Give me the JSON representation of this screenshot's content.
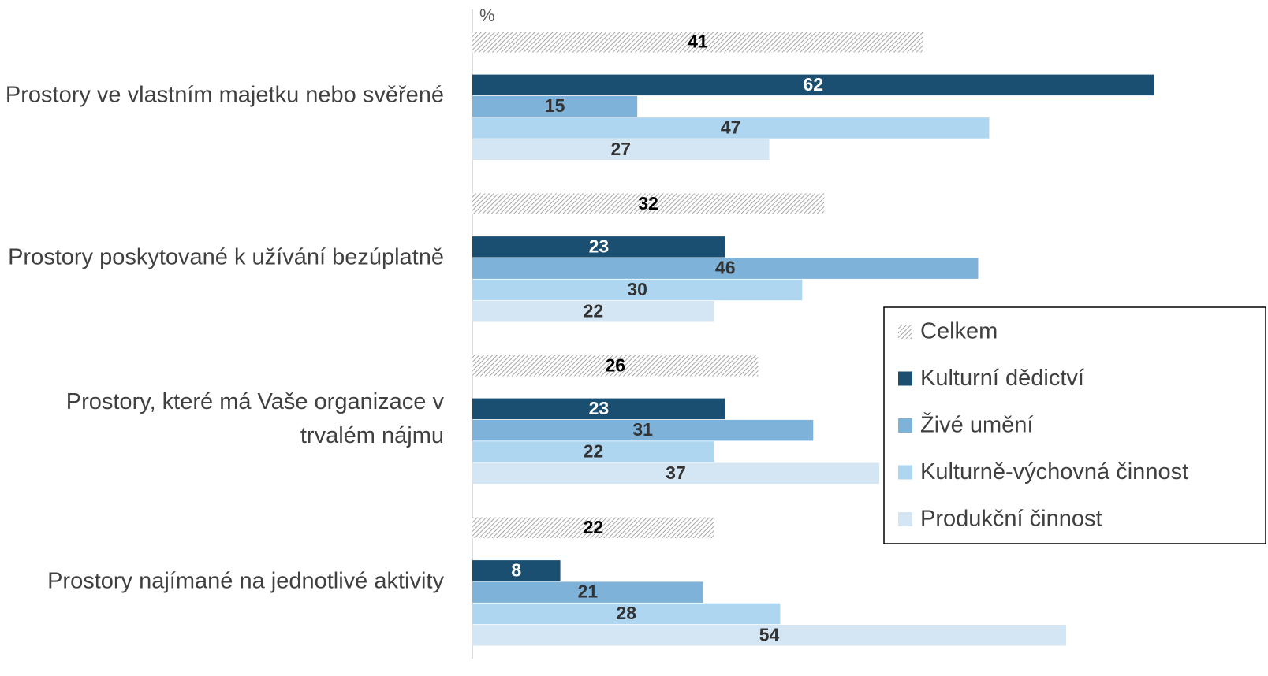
{
  "chart_data": {
    "type": "bar",
    "orientation": "horizontal",
    "x_axis_label": "%",
    "categories": [
      "Prostory ve vlastním majetku nebo svěřené",
      "Prostory poskytované k užívání bezúplatně",
      "Prostory, které má Vaše organizace v trvalém nájmu",
      "Prostory najímané na jednotlivé aktivity"
    ],
    "series": [
      {
        "name": "Celkem",
        "color": "#a6a6a6",
        "hatch": true,
        "label_color": "#000000",
        "values": [
          41,
          32,
          26,
          22
        ]
      },
      {
        "name": "Kulturní dědictví",
        "color": "#1b4f72",
        "label_color": "#ffffff",
        "values": [
          62,
          23,
          23,
          8
        ]
      },
      {
        "name": "Živé umění",
        "color": "#7fb2d8",
        "label_color": "#333333",
        "values": [
          15,
          46,
          31,
          21
        ]
      },
      {
        "name": "Kulturně-výchovná činnost",
        "color": "#aed6f1",
        "label_color": "#333333",
        "values": [
          47,
          30,
          22,
          28
        ]
      },
      {
        "name": "Produkční činnost",
        "color": "#d4e6f3",
        "label_color": "#333333",
        "values": [
          27,
          22,
          37,
          54
        ]
      }
    ],
    "xlim": [
      0,
      72
    ],
    "legend": "right"
  }
}
